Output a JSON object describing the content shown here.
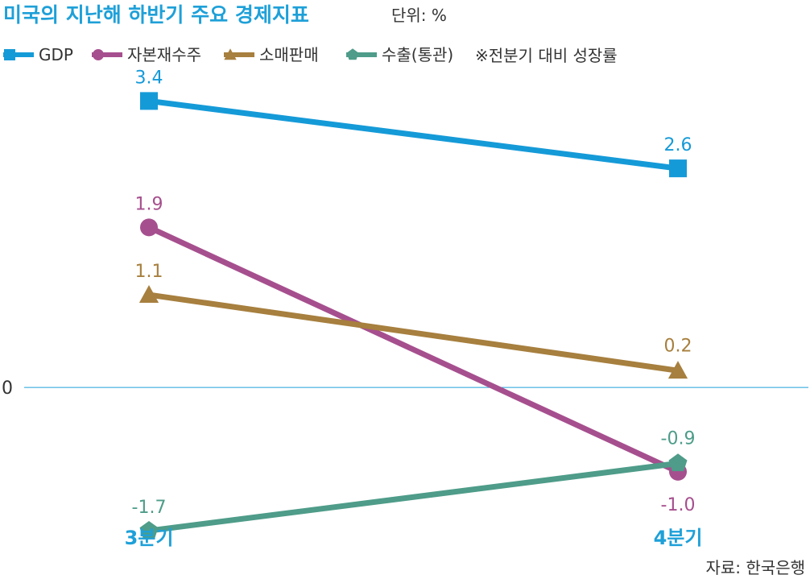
{
  "title": "미국의 지난해 하반기 주요 경제지표",
  "unit_text": "단위: %",
  "note": "※전분기 대비 성장률",
  "source": "자료: 한국은행",
  "colors": {
    "gdp": "#159ad8",
    "capital_goods_orders": "#a64f8e",
    "retail_sales": "#a77f3e",
    "exports": "#4e9c89",
    "zero_line": "#1ea0d8",
    "title": "#1ea0d8"
  },
  "chart_data": {
    "type": "line",
    "categories": [
      "3분기",
      "4분기"
    ],
    "baseline_label": "0",
    "series": [
      {
        "name": "GDP",
        "key": "gdp",
        "marker": "square",
        "values": [
          3.4,
          2.6
        ],
        "labels": [
          "3.4",
          "2.6"
        ]
      },
      {
        "name": "자본재수주",
        "key": "capital_goods_orders",
        "marker": "circle",
        "values": [
          1.9,
          -1.0
        ],
        "labels": [
          "1.9",
          "-1.0"
        ]
      },
      {
        "name": "소매판매",
        "key": "retail_sales",
        "marker": "triangle",
        "values": [
          1.1,
          0.2
        ],
        "labels": [
          "1.1",
          "0.2"
        ]
      },
      {
        "name": "수출(통관)",
        "key": "exports",
        "marker": "pentagon",
        "values": [
          -1.7,
          -0.9
        ],
        "labels": [
          "-1.7",
          "-0.9"
        ]
      }
    ],
    "ylim": [
      -1.9,
      3.7
    ],
    "grid": false,
    "legend_position": "top-left"
  }
}
